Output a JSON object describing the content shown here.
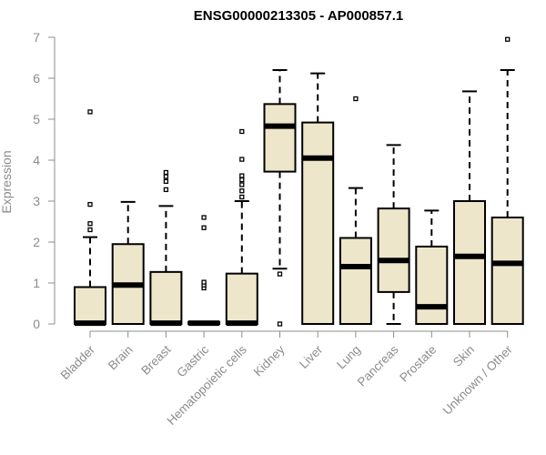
{
  "chart_data": {
    "type": "box",
    "title": "ENSG00000213305 - AP000857.1",
    "ylabel": "Expression",
    "xlabel": "",
    "ylim": [
      0,
      7
    ],
    "yticks": [
      "0",
      "1",
      "2",
      "3",
      "4",
      "5",
      "6",
      "7"
    ],
    "grid": false,
    "box_color": "#ede6cb",
    "line_color": "#000000",
    "categories": [
      "Bladder",
      "Brain",
      "Breast",
      "Gastric",
      "Hematopoietic cells",
      "Kidney",
      "Liver",
      "Lung",
      "Pancreas",
      "Prostate",
      "Skin",
      "Unknown / Other"
    ],
    "boxes": [
      {
        "category": "Bladder",
        "whisker_low": 0,
        "q1": 0,
        "median": 0.02,
        "q3": 0.9,
        "whisker_high": 2.12,
        "outliers": [
          2.3,
          2.45,
          2.92,
          5.18
        ]
      },
      {
        "category": "Brain",
        "whisker_low": 0,
        "q1": 0,
        "median": 0.95,
        "q3": 1.95,
        "whisker_high": 2.98,
        "outliers": []
      },
      {
        "category": "Breast",
        "whisker_low": 0,
        "q1": 0,
        "median": 0.02,
        "q3": 1.27,
        "whisker_high": 2.88,
        "outliers": [
          3.28,
          3.48,
          3.6,
          3.7
        ]
      },
      {
        "category": "Gastric",
        "whisker_low": 0,
        "q1": 0,
        "median": 0.02,
        "q3": 0.05,
        "whisker_high": 0.05,
        "outliers": [
          0.88,
          0.95,
          1.02,
          2.35,
          2.6
        ]
      },
      {
        "category": "Hematopoietic cells",
        "whisker_low": 0,
        "q1": 0,
        "median": 0.02,
        "q3": 1.23,
        "whisker_high": 3.0,
        "outliers": [
          3.1,
          3.25,
          3.4,
          3.52,
          3.62,
          4.02,
          4.7
        ]
      },
      {
        "category": "Kidney",
        "whisker_low": 1.35,
        "q1": 3.72,
        "median": 4.83,
        "q3": 5.37,
        "whisker_high": 6.2,
        "outliers": [
          0,
          1.22
        ]
      },
      {
        "category": "Liver",
        "whisker_low": 0,
        "q1": 0,
        "median": 4.05,
        "q3": 4.92,
        "whisker_high": 6.12,
        "outliers": []
      },
      {
        "category": "Lung",
        "whisker_low": 0,
        "q1": 0,
        "median": 1.4,
        "q3": 2.1,
        "whisker_high": 3.32,
        "outliers": [
          5.5
        ]
      },
      {
        "category": "Pancreas",
        "whisker_low": 0,
        "q1": 0.78,
        "median": 1.55,
        "q3": 2.82,
        "whisker_high": 4.37,
        "outliers": []
      },
      {
        "category": "Prostate",
        "whisker_low": 0,
        "q1": 0,
        "median": 0.42,
        "q3": 1.89,
        "whisker_high": 2.77,
        "outliers": []
      },
      {
        "category": "Skin",
        "whisker_low": 0,
        "q1": 0,
        "median": 1.65,
        "q3": 3.0,
        "whisker_high": 5.68,
        "outliers": []
      },
      {
        "category": "Unknown / Other",
        "whisker_low": 0,
        "q1": 0,
        "median": 1.48,
        "q3": 2.6,
        "whisker_high": 6.2,
        "outliers": [
          6.95
        ]
      }
    ]
  }
}
